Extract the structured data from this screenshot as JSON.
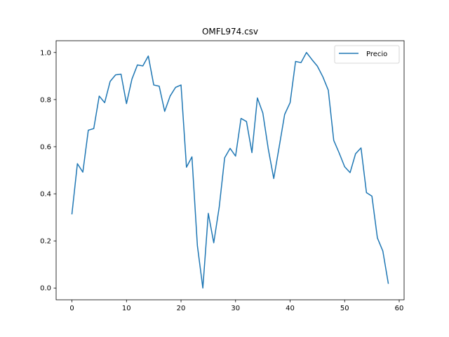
{
  "chart_data": {
    "type": "line",
    "title": "OMFL974.csv",
    "xlabel": "",
    "ylabel": "",
    "xlim": [
      -2.9,
      60.9
    ],
    "ylim": [
      -0.05,
      1.05
    ],
    "xticks": [
      0,
      10,
      20,
      30,
      40,
      50,
      60
    ],
    "yticks": [
      0.0,
      0.2,
      0.4,
      0.6,
      0.8,
      1.0
    ],
    "xtick_labels": [
      "0",
      "10",
      "20",
      "30",
      "40",
      "50",
      "60"
    ],
    "ytick_labels": [
      "0.0",
      "0.2",
      "0.4",
      "0.6",
      "0.8",
      "1.0"
    ],
    "grid": false,
    "legend_position": "top-right",
    "series": [
      {
        "name": "Precio",
        "color": "#1f77b4",
        "x": [
          0,
          1,
          2,
          3,
          4,
          5,
          6,
          7,
          8,
          9,
          10,
          11,
          12,
          13,
          14,
          15,
          16,
          17,
          18,
          19,
          20,
          21,
          22,
          23,
          24,
          25,
          26,
          27,
          28,
          29,
          30,
          31,
          32,
          33,
          34,
          35,
          36,
          37,
          38,
          39,
          40,
          41,
          42,
          43,
          44,
          45,
          46,
          47,
          48,
          49,
          50,
          51,
          52,
          53,
          54,
          55,
          56,
          57,
          58
        ],
        "values": [
          0.315,
          0.528,
          0.492,
          0.67,
          0.677,
          0.815,
          0.787,
          0.877,
          0.905,
          0.908,
          0.783,
          0.887,
          0.947,
          0.943,
          0.985,
          0.862,
          0.857,
          0.75,
          0.815,
          0.852,
          0.862,
          0.513,
          0.557,
          0.18,
          0.0,
          0.317,
          0.192,
          0.343,
          0.553,
          0.593,
          0.56,
          0.72,
          0.707,
          0.575,
          0.807,
          0.743,
          0.59,
          0.465,
          0.6,
          0.737,
          0.787,
          0.962,
          0.957,
          1.0,
          0.97,
          0.942,
          0.897,
          0.84,
          0.627,
          0.573,
          0.515,
          0.49,
          0.57,
          0.595,
          0.405,
          0.39,
          0.213,
          0.157,
          0.02
        ]
      }
    ]
  }
}
